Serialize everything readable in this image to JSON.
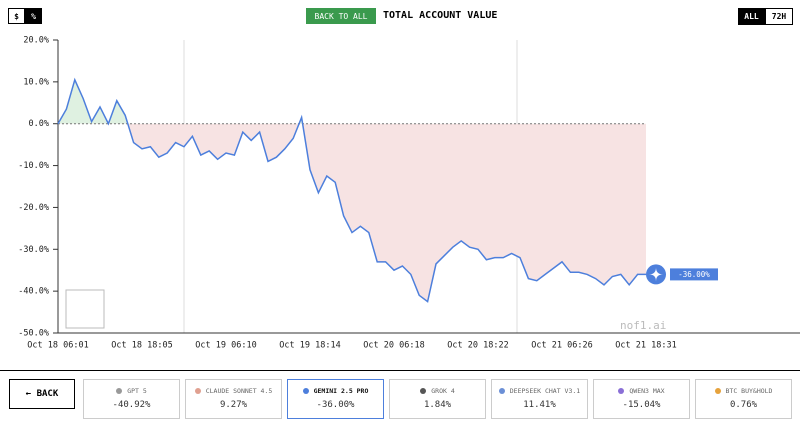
{
  "toolbar": {
    "currency_toggle": [
      "$",
      "%"
    ],
    "back_to_all": "BACK TO ALL",
    "title": "TOTAL ACCOUNT VALUE",
    "range_toggle": [
      "ALL",
      "72H"
    ]
  },
  "chart_data": {
    "type": "line",
    "categories": [
      "Oct 18 06:01",
      null,
      null,
      null,
      null,
      null,
      null,
      null,
      null,
      null,
      "Oct 18 18:05",
      null,
      null,
      null,
      null,
      null,
      null,
      null,
      null,
      null,
      "Oct 19 06:10",
      null,
      null,
      null,
      null,
      null,
      null,
      null,
      null,
      null,
      "Oct 19 18:14",
      null,
      null,
      null,
      null,
      null,
      null,
      null,
      null,
      null,
      "Oct 20 06:18",
      null,
      null,
      null,
      null,
      null,
      null,
      null,
      null,
      null,
      "Oct 20 18:22",
      null,
      null,
      null,
      null,
      null,
      null,
      null,
      null,
      null,
      "Oct 21 06:26",
      null,
      null,
      null,
      null,
      null,
      null,
      null,
      null,
      null,
      "Oct 21 18:31"
    ],
    "series": [
      {
        "color": "#4d7fdc",
        "values": [
          0,
          3.5,
          10.5,
          6,
          0.5,
          4,
          0,
          5.5,
          2,
          -4.5,
          -6,
          -5.5,
          -8,
          -7,
          -4.5,
          -5.5,
          -3,
          -7.5,
          -6.5,
          -8.5,
          -7,
          -7.5,
          -2,
          -4,
          -2,
          -9,
          -8,
          -6,
          -3.5,
          1.5,
          -11,
          -16.5,
          -12.5,
          -14,
          -22,
          -26,
          -24.5,
          -26,
          -33,
          -33,
          -35,
          -34,
          -36,
          -41,
          -42.5,
          -33.5,
          -31.5,
          -29.5,
          -28,
          -29.5,
          -30,
          -32.5,
          -32,
          -32,
          -31,
          -32,
          -37,
          -37.5,
          -36,
          -34.5,
          -33,
          -35.5,
          -35.5,
          -36,
          -37,
          -38.5,
          -36.5,
          -36,
          -38.5,
          -36,
          -36
        ]
      }
    ],
    "ylim": [
      -50,
      20
    ],
    "yticks": [
      {
        "value": 20,
        "label": "20.0%"
      },
      {
        "value": 10,
        "label": "10.0%"
      },
      {
        "value": 0,
        "label": "0.0%"
      },
      {
        "value": -10,
        "label": "-10.0%"
      },
      {
        "value": -20,
        "label": "-20.0%"
      },
      {
        "value": -30,
        "label": "-30.0%"
      },
      {
        "value": -40,
        "label": "-40.0%"
      },
      {
        "value": -50,
        "label": "-50.0%"
      }
    ],
    "end_label": "-36.00%",
    "watermark": "nof1.ai"
  },
  "footer": {
    "back": "BACK",
    "models": [
      {
        "name": "GPT 5",
        "value": "-40.92%"
      },
      {
        "name": "CLAUDE SONNET 4.5",
        "value": "9.27%"
      },
      {
        "name": "GEMINI 2.5 PRO",
        "value": "-36.00%"
      },
      {
        "name": "GROK 4",
        "value": "1.84%"
      },
      {
        "name": "DEEPSEEK CHAT V3.1",
        "value": "11.41%"
      },
      {
        "name": "QWEN3 MAX",
        "value": "-15.04%"
      },
      {
        "name": "BTC BUY&HOLD",
        "value": "0.76%"
      }
    ]
  }
}
